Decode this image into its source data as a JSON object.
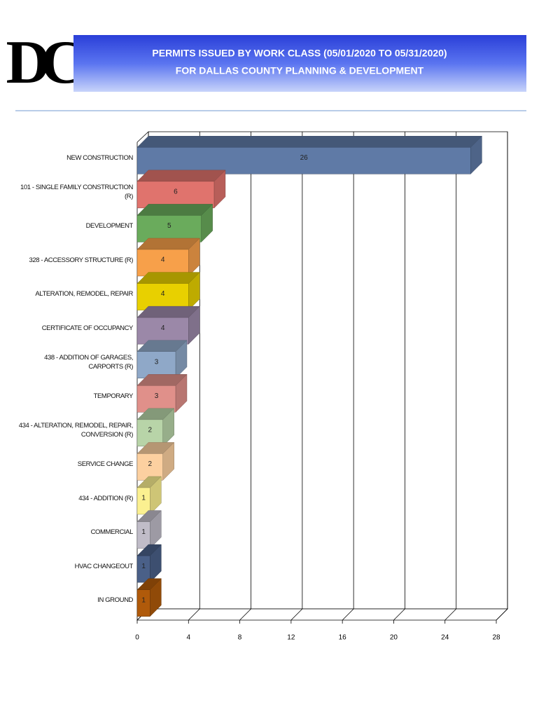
{
  "logo": "DC",
  "chart_data": {
    "type": "bar",
    "orientation": "horizontal",
    "title": "PERMITS ISSUED BY WORK CLASS (05/01/2020 TO 05/31/2020)",
    "subtitle": "FOR DALLAS COUNTY PLANNING & DEVELOPMENT",
    "categories": [
      "NEW CONSTRUCTION",
      "101 - SINGLE FAMILY CONSTRUCTION (R)",
      "DEVELOPMENT",
      "328 - ACCESSORY STRUCTURE (R)",
      "ALTERATION, REMODEL, REPAIR",
      "CERTIFICATE OF OCCUPANCY",
      "438 - ADDITION OF GARAGES, CARPORTS (R)",
      "TEMPORARY",
      "434 - ALTERATION, REMODEL, REPAIR, CONVERSION (R)",
      "SERVICE CHANGE",
      "434 - ADDITION (R)",
      "COMMERCIAL",
      "HVAC CHANGEOUT",
      "IN GROUND"
    ],
    "values": [
      26,
      6,
      5,
      4,
      4,
      4,
      3,
      3,
      2,
      2,
      1,
      1,
      1,
      1
    ],
    "colors": [
      "#5f7aa6",
      "#e0736d",
      "#6aab5c",
      "#f7a04a",
      "#e8d000",
      "#9b88a8",
      "#8fa8c8",
      "#e0908a",
      "#b8d4a8",
      "#fcd0a0",
      "#fbf090",
      "#c0bcc8",
      "#4a6088",
      "#b05a0a"
    ],
    "xlim": [
      0,
      28
    ],
    "xticks": [
      0,
      4,
      8,
      12,
      16,
      20,
      24,
      28
    ],
    "grid": true
  }
}
